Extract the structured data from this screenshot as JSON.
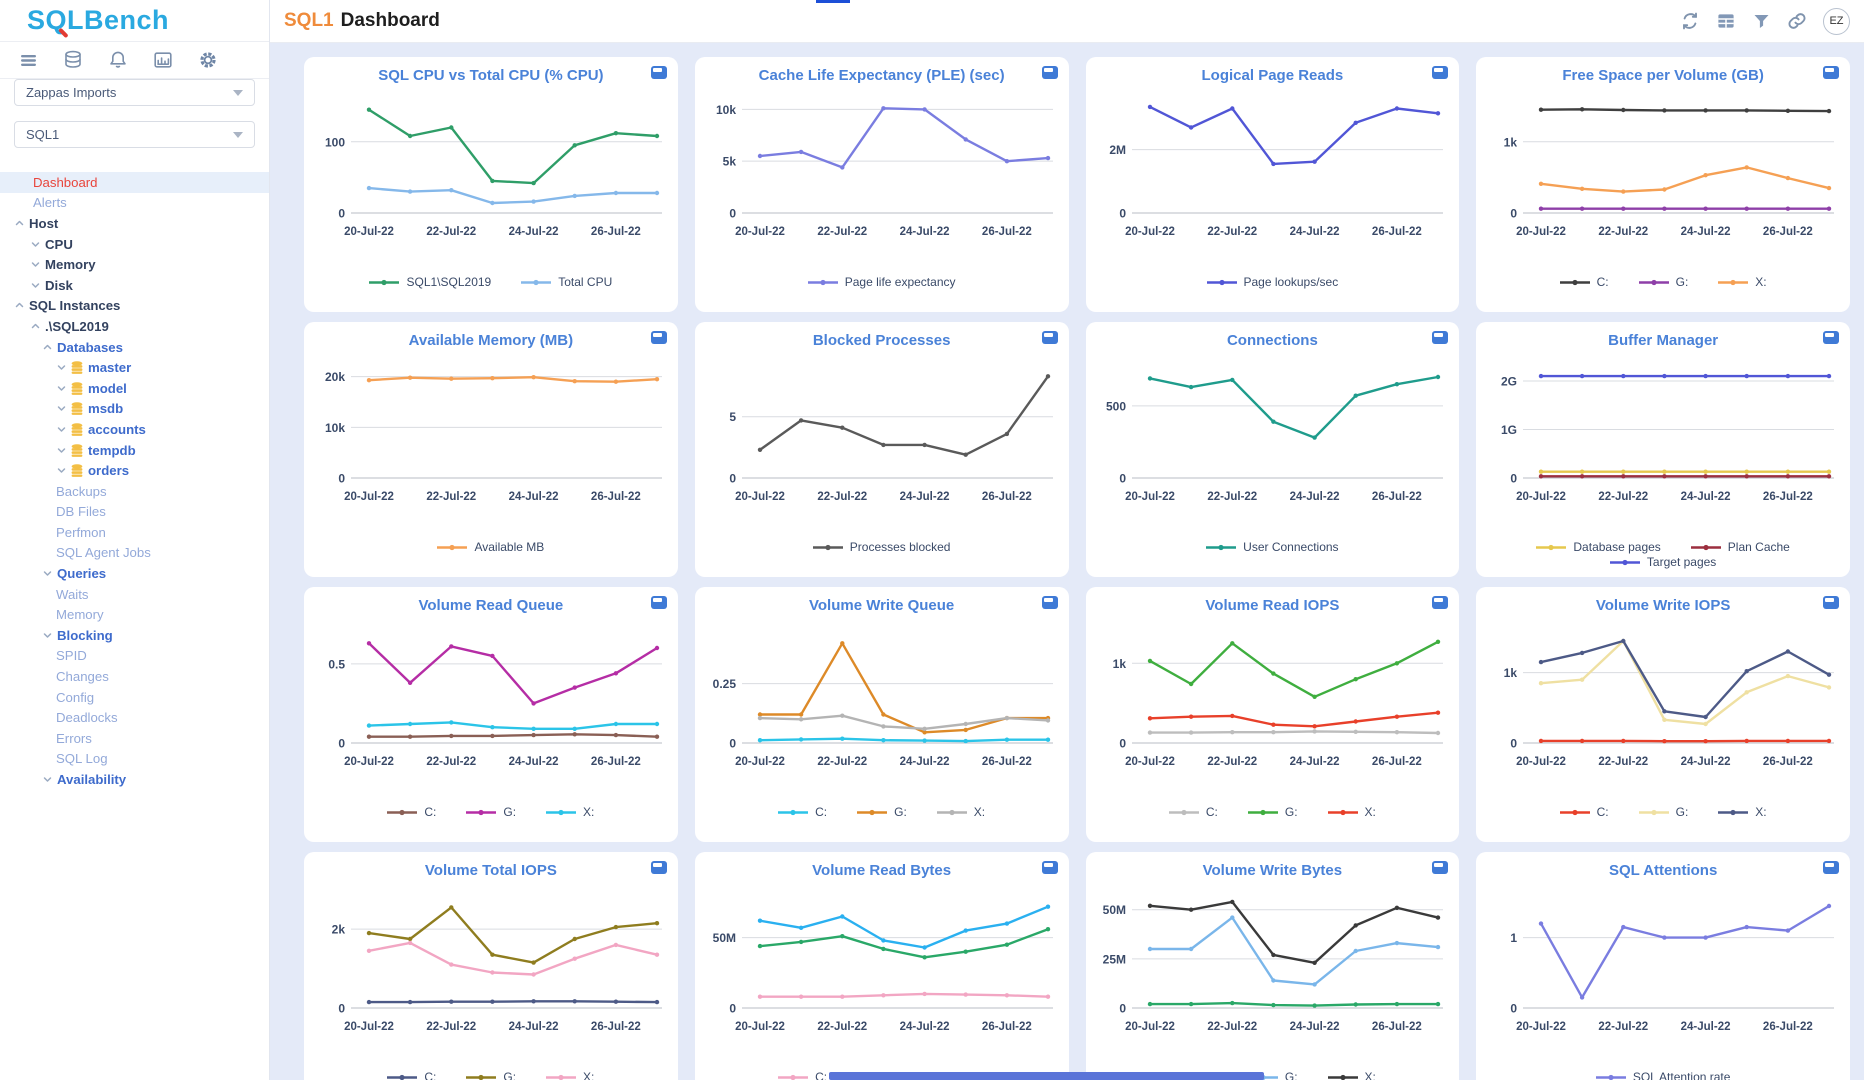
{
  "logo": {
    "text": "SQLBench"
  },
  "sidebar": {
    "selects": [
      {
        "value": "Zappas Imports"
      },
      {
        "value": "SQL1"
      }
    ],
    "tree": [
      {
        "label": "Dashboard",
        "cls": "active",
        "indent": 33
      },
      {
        "label": "Alerts",
        "cls": "sub",
        "indent": 33
      },
      {
        "label": "Host",
        "cls": "dark",
        "indent": 14,
        "arrow": "up"
      },
      {
        "label": "CPU",
        "cls": "dark",
        "indent": 30,
        "arrow": "down"
      },
      {
        "label": "Memory",
        "cls": "dark",
        "indent": 30,
        "arrow": "down"
      },
      {
        "label": "Disk",
        "cls": "dark",
        "indent": 30,
        "arrow": "down"
      },
      {
        "label": "SQL Instances",
        "cls": "dark",
        "indent": 14,
        "arrow": "up"
      },
      {
        "label": ".\\SQL2019",
        "cls": "dark",
        "indent": 30,
        "arrow": "up"
      },
      {
        "label": "Databases",
        "cls": "strong",
        "indent": 42,
        "arrow": "up"
      },
      {
        "label": "master",
        "cls": "db",
        "indent": 56,
        "arrow": "down",
        "icon": "database"
      },
      {
        "label": "model",
        "cls": "db",
        "indent": 56,
        "arrow": "down",
        "icon": "database"
      },
      {
        "label": "msdb",
        "cls": "db",
        "indent": 56,
        "arrow": "down",
        "icon": "database"
      },
      {
        "label": "accounts",
        "cls": "db",
        "indent": 56,
        "arrow": "down",
        "icon": "database"
      },
      {
        "label": "tempdb",
        "cls": "db",
        "indent": 56,
        "arrow": "down",
        "icon": "database"
      },
      {
        "label": "orders",
        "cls": "db",
        "indent": 56,
        "arrow": "down",
        "icon": "database"
      },
      {
        "label": "Backups",
        "cls": "sub",
        "indent": 56
      },
      {
        "label": "DB Files",
        "cls": "sub",
        "indent": 56
      },
      {
        "label": "Perfmon",
        "cls": "sub",
        "indent": 56
      },
      {
        "label": "SQL Agent Jobs",
        "cls": "sub",
        "indent": 56
      },
      {
        "label": "Queries",
        "cls": "strong",
        "indent": 42,
        "arrow": "down"
      },
      {
        "label": "Waits",
        "cls": "sub",
        "indent": 56
      },
      {
        "label": "Memory",
        "cls": "sub",
        "indent": 56
      },
      {
        "label": "Blocking",
        "cls": "strong",
        "indent": 42,
        "arrow": "down"
      },
      {
        "label": "SPID",
        "cls": "sub",
        "indent": 56
      },
      {
        "label": "Changes",
        "cls": "sub",
        "indent": 56
      },
      {
        "label": "Config",
        "cls": "sub",
        "indent": 56
      },
      {
        "label": "Deadlocks",
        "cls": "sub",
        "indent": 56
      },
      {
        "label": "Errors",
        "cls": "sub",
        "indent": 56
      },
      {
        "label": "SQL Log",
        "cls": "sub",
        "indent": 56
      },
      {
        "label": "Availability",
        "cls": "strong",
        "indent": 42,
        "arrow": "down"
      }
    ]
  },
  "header": {
    "title_instance": "SQL1",
    "title_page": "Dashboard",
    "avatar": "EZ"
  },
  "chart_data": [
    {
      "type": "line",
      "title": "SQL CPU vs Total CPU (% CPU)",
      "x_labels": [
        "20-Jul-22",
        "22-Jul-22",
        "24-Jul-22",
        "26-Jul-22"
      ],
      "ylim": [
        0,
        160
      ],
      "yticks": [
        {
          "v": 0,
          "label": "0"
        },
        {
          "v": 100,
          "label": "100"
        }
      ],
      "series": [
        {
          "name": "SQL1\\SQL2019",
          "color": "#2f9e68",
          "values": [
            145,
            108,
            120,
            45,
            42,
            95,
            112,
            108
          ]
        },
        {
          "name": "Total CPU",
          "color": "#85b8ea",
          "values": [
            35,
            30,
            32,
            14,
            16,
            24,
            28,
            28
          ]
        }
      ]
    },
    {
      "type": "line",
      "title": "Cache Life Expectancy (PLE) (sec)",
      "x_labels": [
        "20-Jul-22",
        "22-Jul-22",
        "24-Jul-22",
        "26-Jul-22"
      ],
      "ylim": [
        0,
        11000
      ],
      "yticks": [
        {
          "v": 0,
          "label": "0"
        },
        {
          "v": 5000,
          "label": "5k"
        },
        {
          "v": 10000,
          "label": "10k"
        }
      ],
      "series": [
        {
          "name": "Page life expectancy",
          "color": "#7a7de0",
          "values": [
            5500,
            5900,
            4400,
            10100,
            10000,
            7100,
            5000,
            5300
          ]
        }
      ]
    },
    {
      "type": "line",
      "title": "Logical Page Reads",
      "x_labels": [
        "20-Jul-22",
        "22-Jul-22",
        "24-Jul-22",
        "26-Jul-22"
      ],
      "ylim": [
        0,
        3600000
      ],
      "yticks": [
        {
          "v": 0,
          "label": "0"
        },
        {
          "v": 2000000,
          "label": "2M"
        }
      ],
      "series": [
        {
          "name": "Page lookups/sec",
          "color": "#5156d6",
          "values": [
            3350000,
            2700000,
            3300000,
            1550000,
            1620000,
            2850000,
            3300000,
            3150000
          ]
        }
      ]
    },
    {
      "type": "line",
      "title": "Free Space per Volume (GB)",
      "x_labels": [
        "20-Jul-22",
        "22-Jul-22",
        "24-Jul-22",
        "26-Jul-22"
      ],
      "ylim": [
        0,
        1600
      ],
      "yticks": [
        {
          "v": 0,
          "label": "0"
        },
        {
          "v": 1000,
          "label": "1k"
        }
      ],
      "series": [
        {
          "name": "C:",
          "color": "#3f3f3f",
          "values": [
            1450,
            1455,
            1445,
            1440,
            1440,
            1440,
            1435,
            1430
          ]
        },
        {
          "name": "G:",
          "color": "#8e3fa8",
          "values": [
            60,
            60,
            60,
            60,
            60,
            60,
            60,
            60
          ]
        },
        {
          "name": "X:",
          "color": "#f5a054",
          "values": [
            410,
            340,
            300,
            330,
            530,
            640,
            490,
            350
          ]
        }
      ]
    },
    {
      "type": "line",
      "title": "Available Memory (MB)",
      "x_labels": [
        "20-Jul-22",
        "22-Jul-22",
        "24-Jul-22",
        "26-Jul-22"
      ],
      "ylim": [
        0,
        22500
      ],
      "yticks": [
        {
          "v": 0,
          "label": "0"
        },
        {
          "v": 10000,
          "label": "10k"
        },
        {
          "v": 20000,
          "label": "20k"
        }
      ],
      "series": [
        {
          "name": "Available MB",
          "color": "#f5a054",
          "values": [
            19300,
            19800,
            19600,
            19700,
            19900,
            19100,
            19000,
            19500
          ]
        }
      ]
    },
    {
      "type": "line",
      "title": "Blocked Processes",
      "x_labels": [
        "20-Jul-22",
        "22-Jul-22",
        "24-Jul-22",
        "26-Jul-22"
      ],
      "ylim": [
        0,
        9.3
      ],
      "yticks": [
        {
          "v": 0,
          "label": "0"
        },
        {
          "v": 5,
          "label": "5"
        }
      ],
      "series": [
        {
          "name": "Processes blocked",
          "color": "#5a5a5a",
          "values": [
            2.3,
            4.7,
            4.1,
            2.7,
            2.7,
            1.9,
            3.6,
            8.3
          ]
        }
      ]
    },
    {
      "type": "line",
      "title": "Connections",
      "x_labels": [
        "20-Jul-22",
        "22-Jul-22",
        "24-Jul-22",
        "26-Jul-22"
      ],
      "ylim": [
        0,
        790
      ],
      "yticks": [
        {
          "v": 0,
          "label": "0"
        },
        {
          "v": 500,
          "label": "500"
        }
      ],
      "series": [
        {
          "name": "User Connections",
          "color": "#1f9c8c",
          "values": [
            690,
            630,
            680,
            390,
            280,
            570,
            650,
            700
          ]
        }
      ]
    },
    {
      "type": "line",
      "title": "Buffer Manager",
      "x_labels": [
        "20-Jul-22",
        "22-Jul-22",
        "24-Jul-22",
        "26-Jul-22"
      ],
      "ylim": [
        0,
        2350000000
      ],
      "yticks": [
        {
          "v": 0,
          "label": "0"
        },
        {
          "v": 1000000000,
          "label": "1G"
        },
        {
          "v": 2000000000,
          "label": "2G"
        }
      ],
      "series": [
        {
          "name": "Database pages",
          "color": "#e6c84e",
          "values": [
            130000000,
            130000000,
            130000000,
            130000000,
            130000000,
            130000000,
            130000000,
            130000000
          ]
        },
        {
          "name": "Plan Cache",
          "color": "#9c2f3f",
          "values": [
            35000000,
            35000000,
            35000000,
            35000000,
            35000000,
            35000000,
            35000000,
            35000000
          ]
        },
        {
          "name": "Target pages",
          "color": "#5156d6",
          "values": [
            2100000000,
            2100000000,
            2100000000,
            2100000000,
            2100000000,
            2100000000,
            2100000000,
            2100000000
          ]
        }
      ]
    },
    {
      "type": "line",
      "title": "Volume Read Queue",
      "x_labels": [
        "20-Jul-22",
        "22-Jul-22",
        "24-Jul-22",
        "26-Jul-22"
      ],
      "ylim": [
        0,
        0.72
      ],
      "yticks": [
        {
          "v": 0,
          "label": "0"
        },
        {
          "v": 0.5,
          "label": "0.5"
        }
      ],
      "series": [
        {
          "name": "C:",
          "color": "#8a5f55",
          "values": [
            0.04,
            0.04,
            0.045,
            0.045,
            0.05,
            0.055,
            0.05,
            0.04
          ]
        },
        {
          "name": "G:",
          "color": "#b52da5",
          "values": [
            0.63,
            0.38,
            0.61,
            0.55,
            0.25,
            0.35,
            0.44,
            0.6
          ]
        },
        {
          "name": "X:",
          "color": "#2bc4e8",
          "values": [
            0.11,
            0.12,
            0.13,
            0.1,
            0.09,
            0.09,
            0.12,
            0.12
          ]
        }
      ]
    },
    {
      "type": "line",
      "title": "Volume Write Queue",
      "x_labels": [
        "20-Jul-22",
        "22-Jul-22",
        "24-Jul-22",
        "26-Jul-22"
      ],
      "ylim": [
        0,
        0.48
      ],
      "yticks": [
        {
          "v": 0,
          "label": "0"
        },
        {
          "v": 0.25,
          "label": "0.25"
        }
      ],
      "series": [
        {
          "name": "C:",
          "color": "#2bc4e8",
          "values": [
            0.012,
            0.015,
            0.018,
            0.012,
            0.01,
            0.008,
            0.014,
            0.014
          ]
        },
        {
          "name": "G:",
          "color": "#dd8a28",
          "values": [
            0.12,
            0.12,
            0.42,
            0.12,
            0.045,
            0.055,
            0.105,
            0.105
          ]
        },
        {
          "name": "X:",
          "color": "#b4b4b4",
          "values": [
            0.105,
            0.1,
            0.115,
            0.07,
            0.06,
            0.08,
            0.105,
            0.095
          ]
        }
      ]
    },
    {
      "type": "line",
      "title": "Volume Read IOPS",
      "x_labels": [
        "20-Jul-22",
        "22-Jul-22",
        "24-Jul-22",
        "26-Jul-22"
      ],
      "ylim": [
        0,
        1430
      ],
      "yticks": [
        {
          "v": 0,
          "label": "0"
        },
        {
          "v": 1000,
          "label": "1k"
        }
      ],
      "series": [
        {
          "name": "C:",
          "color": "#bdbdbd",
          "values": [
            130,
            130,
            135,
            135,
            145,
            140,
            135,
            125
          ]
        },
        {
          "name": "G:",
          "color": "#3fae3f",
          "values": [
            1030,
            740,
            1250,
            870,
            580,
            800,
            1000,
            1270
          ]
        },
        {
          "name": "X:",
          "color": "#e8402a",
          "values": [
            310,
            330,
            340,
            230,
            210,
            270,
            330,
            380
          ]
        }
      ]
    },
    {
      "type": "line",
      "title": "Volume Write IOPS",
      "x_labels": [
        "20-Jul-22",
        "22-Jul-22",
        "24-Jul-22",
        "26-Jul-22"
      ],
      "ylim": [
        0,
        1620
      ],
      "yticks": [
        {
          "v": 0,
          "label": "0"
        },
        {
          "v": 1000,
          "label": "1k"
        }
      ],
      "series": [
        {
          "name": "C:",
          "color": "#e8402a",
          "values": [
            30,
            30,
            30,
            25,
            25,
            30,
            30,
            30
          ]
        },
        {
          "name": "G:",
          "color": "#efe0a2",
          "values": [
            850,
            900,
            1450,
            330,
            270,
            720,
            950,
            790
          ]
        },
        {
          "name": "X:",
          "color": "#4d5a87",
          "values": [
            1150,
            1280,
            1450,
            450,
            370,
            1020,
            1300,
            970
          ]
        }
      ]
    },
    {
      "type": "line",
      "title": "Volume Total IOPS",
      "x_labels": [
        "20-Jul-22",
        "22-Jul-22",
        "24-Jul-22",
        "26-Jul-22"
      ],
      "ylim": [
        0,
        2890
      ],
      "yticks": [
        {
          "v": 0,
          "label": "0"
        },
        {
          "v": 2000,
          "label": "2k"
        }
      ],
      "series": [
        {
          "name": "C:",
          "color": "#4d5a87",
          "values": [
            150,
            150,
            160,
            160,
            170,
            170,
            160,
            150
          ]
        },
        {
          "name": "G:",
          "color": "#8f7d1f",
          "values": [
            1900,
            1750,
            2550,
            1350,
            1150,
            1750,
            2050,
            2150
          ]
        },
        {
          "name": "X:",
          "color": "#f2a6c3",
          "values": [
            1450,
            1650,
            1100,
            900,
            850,
            1250,
            1600,
            1350
          ]
        }
      ]
    },
    {
      "type": "line",
      "title": "Volume Read Bytes",
      "x_labels": [
        "20-Jul-22",
        "22-Jul-22",
        "24-Jul-22",
        "26-Jul-22"
      ],
      "ylim": [
        0,
        81000000
      ],
      "yticks": [
        {
          "v": 0,
          "label": "0"
        },
        {
          "v": 50000000,
          "label": "50M"
        }
      ],
      "series": [
        {
          "name": "C:",
          "color": "#f2a6c3",
          "values": [
            8000000,
            8000000,
            8000000,
            9000000,
            10000000,
            9500000,
            9000000,
            8000000
          ]
        },
        {
          "name": "G:",
          "color": "#2ab0f0",
          "values": [
            62000000,
            57000000,
            65000000,
            48000000,
            43000000,
            55000000,
            60000000,
            72000000
          ]
        },
        {
          "name": "X:",
          "color": "#2aa868",
          "values": [
            44000000,
            47000000,
            51000000,
            42000000,
            36000000,
            40000000,
            45000000,
            56000000
          ]
        }
      ]
    },
    {
      "type": "line",
      "title": "Volume Write Bytes",
      "x_labels": [
        "20-Jul-22",
        "22-Jul-22",
        "24-Jul-22",
        "26-Jul-22"
      ],
      "ylim": [
        0,
        58000000
      ],
      "yticks": [
        {
          "v": 0,
          "label": "0"
        },
        {
          "v": 25000000,
          "label": "25M"
        },
        {
          "v": 50000000,
          "label": "50M"
        }
      ],
      "series": [
        {
          "name": "C:",
          "color": "#2aa868",
          "values": [
            2000000,
            2000000,
            2500000,
            1500000,
            1200000,
            1800000,
            2000000,
            2000000
          ]
        },
        {
          "name": "G:",
          "color": "#7ab6ea",
          "values": [
            30000000,
            30000000,
            46000000,
            14000000,
            12000000,
            29000000,
            33000000,
            31000000
          ]
        },
        {
          "name": "X:",
          "color": "#3a3a3a",
          "values": [
            52000000,
            50000000,
            54000000,
            27000000,
            23000000,
            42000000,
            51000000,
            46000000
          ]
        }
      ]
    },
    {
      "type": "line",
      "title": "SQL Attentions",
      "x_labels": [
        "20-Jul-22",
        "22-Jul-22",
        "24-Jul-22",
        "26-Jul-22"
      ],
      "ylim": [
        0,
        1.62
      ],
      "yticks": [
        {
          "v": 0,
          "label": "0"
        },
        {
          "v": 1,
          "label": "1"
        }
      ],
      "series": [
        {
          "name": "SQL Attention rate",
          "color": "#7a7de0",
          "values": [
            1.2,
            0.15,
            1.15,
            1.0,
            1.0,
            1.15,
            1.1,
            1.45
          ]
        }
      ]
    }
  ]
}
